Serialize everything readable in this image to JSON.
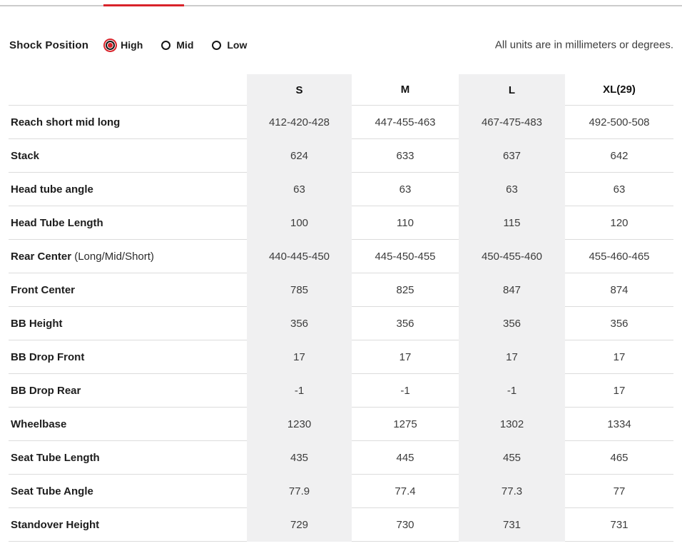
{
  "page": {
    "units_note": "All units are in millimeters or degrees.",
    "accent_red": "#d8232a",
    "stripe_gray": "#f0f0f1"
  },
  "shock_position": {
    "label": "Shock Position",
    "options": [
      {
        "label": "High",
        "selected": true
      },
      {
        "label": "Mid",
        "selected": false
      },
      {
        "label": "Low",
        "selected": false
      }
    ]
  },
  "geometry_table": {
    "columns": [
      "S",
      "M",
      "L",
      "XL(29)"
    ],
    "rows": [
      {
        "label": "Reach short mid long",
        "suffix": "",
        "values": [
          "412-420-428",
          "447-455-463",
          "467-475-483",
          "492-500-508"
        ]
      },
      {
        "label": "Stack",
        "suffix": "",
        "values": [
          "624",
          "633",
          "637",
          "642"
        ]
      },
      {
        "label": "Head tube angle",
        "suffix": "",
        "values": [
          "63",
          "63",
          "63",
          "63"
        ]
      },
      {
        "label": "Head Tube Length",
        "suffix": "",
        "values": [
          "100",
          "110",
          "115",
          "120"
        ]
      },
      {
        "label": "Rear Center",
        "suffix": "(Long/Mid/Short)",
        "values": [
          "440-445-450",
          "445-450-455",
          "450-455-460",
          "455-460-465"
        ]
      },
      {
        "label": "Front Center",
        "suffix": "",
        "values": [
          "785",
          "825",
          "847",
          "874"
        ]
      },
      {
        "label": "BB Height",
        "suffix": "",
        "values": [
          "356",
          "356",
          "356",
          "356"
        ]
      },
      {
        "label": "BB Drop Front",
        "suffix": "",
        "values": [
          "17",
          "17",
          "17",
          "17"
        ]
      },
      {
        "label": "BB Drop Rear",
        "suffix": "",
        "values": [
          "-1",
          "-1",
          "-1",
          "17"
        ]
      },
      {
        "label": "Wheelbase",
        "suffix": "",
        "values": [
          "1230",
          "1275",
          "1302",
          "1334"
        ]
      },
      {
        "label": "Seat Tube Length",
        "suffix": "",
        "values": [
          "435",
          "445",
          "455",
          "465"
        ]
      },
      {
        "label": "Seat Tube Angle",
        "suffix": "",
        "values": [
          "77.9",
          "77.4",
          "77.3",
          "77"
        ]
      },
      {
        "label": "Standover Height",
        "suffix": "",
        "values": [
          "729",
          "730",
          "731",
          "731"
        ]
      }
    ]
  }
}
